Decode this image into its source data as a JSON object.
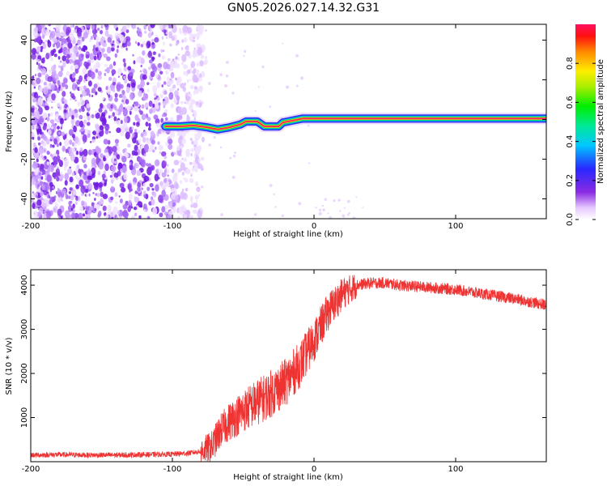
{
  "title": "GN05.2026.027.14.32.G31",
  "chart_data": [
    {
      "type": "heatmap",
      "name": "spectrogram",
      "xlabel": "Height of straight line (km)",
      "ylabel": "Frequency (Hz)",
      "xlim": [
        -200,
        164
      ],
      "ylim": [
        -50,
        48
      ],
      "xticks": [
        -200,
        -100,
        0,
        100
      ],
      "xtick_labels": [
        "-200",
        "-100",
        "0",
        "100"
      ],
      "yticks": [
        -40,
        -20,
        0,
        20,
        40
      ],
      "ytick_labels": [
        "-40",
        "-20",
        "0",
        "20",
        "40"
      ],
      "colorbar": {
        "label": "Normalized spectral amplitude",
        "range": [
          0,
          1
        ],
        "ticks": [
          0.0,
          0.2,
          0.4,
          0.6,
          0.8
        ],
        "tick_labels": [
          "0.0",
          "0.2",
          "0.4",
          "0.6",
          "0.8"
        ]
      },
      "noise_region_x": [
        -200,
        -80
      ],
      "signal_track": [
        {
          "x": -105,
          "f": -3.5
        },
        {
          "x": -95,
          "f": -3.5
        },
        {
          "x": -85,
          "f": -3.0
        },
        {
          "x": -75,
          "f": -4.0
        },
        {
          "x": -68,
          "f": -5.0
        },
        {
          "x": -60,
          "f": -4.0
        },
        {
          "x": -52,
          "f": -2.5
        },
        {
          "x": -48,
          "f": -1.0
        },
        {
          "x": -40,
          "f": -1.0
        },
        {
          "x": -35,
          "f": -3.5
        },
        {
          "x": -25,
          "f": -3.5
        },
        {
          "x": -22,
          "f": -1.5
        },
        {
          "x": -15,
          "f": -0.5
        },
        {
          "x": -8,
          "f": 0.5
        },
        {
          "x": 0,
          "f": 0.5
        },
        {
          "x": 50,
          "f": 0.5
        },
        {
          "x": 100,
          "f": 0.5
        },
        {
          "x": 164,
          "f": 0.5
        }
      ]
    },
    {
      "type": "line",
      "name": "snr",
      "xlabel": "Height of straight line (km)",
      "ylabel": "SNR (10 * v/v)",
      "xlim": [
        -200,
        164
      ],
      "ylim": [
        0,
        4350
      ],
      "xticks": [
        -200,
        -100,
        0,
        100
      ],
      "xtick_labels": [
        "-200",
        "-100",
        "0",
        "100"
      ],
      "yticks": [
        1000,
        2000,
        3000,
        4000
      ],
      "ytick_labels": [
        "1000",
        "2000",
        "3000",
        "4000"
      ],
      "color": "#ee3333",
      "series": [
        {
          "name": "SNR envelope",
          "x": [
            -200,
            -180,
            -160,
            -140,
            -120,
            -100,
            -90,
            -80,
            -72,
            -66,
            -60,
            -50,
            -40,
            -30,
            -20,
            -10,
            0,
            10,
            20,
            30,
            40,
            50,
            60,
            80,
            100,
            120,
            140,
            164
          ],
          "values": [
            150,
            160,
            150,
            150,
            160,
            170,
            190,
            230,
            350,
            700,
            900,
            1150,
            1350,
            1550,
            1800,
            2200,
            2750,
            3400,
            3800,
            4000,
            4050,
            4050,
            4000,
            3950,
            3900,
            3800,
            3700,
            3550
          ]
        }
      ]
    }
  ]
}
